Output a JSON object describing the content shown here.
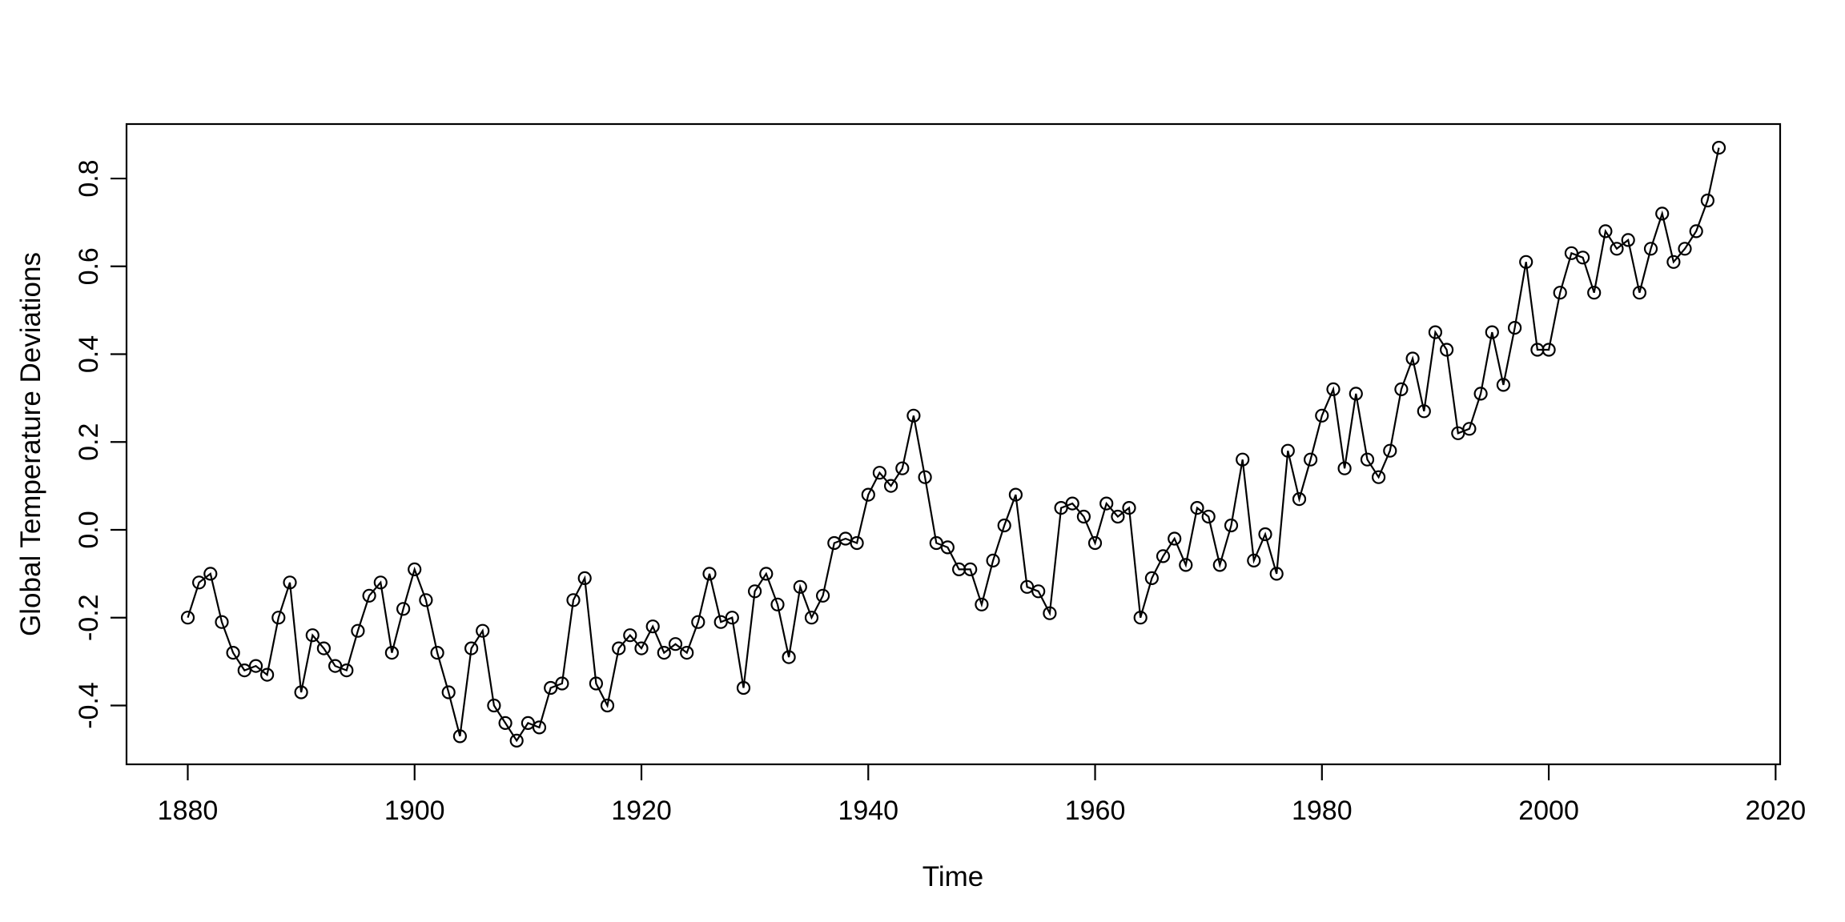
{
  "figure": {
    "background_color": "#ffffff",
    "foreground_color": "#000000"
  },
  "chart_data": {
    "type": "line",
    "title": "",
    "xlabel": "Time",
    "ylabel": "Global Temperature Deviations",
    "grid": false,
    "legend_position": "none",
    "marker": "open-circle",
    "line_color": "#000000",
    "marker_color": "#000000",
    "xlim": [
      1874.6,
      2020.4
    ],
    "ylim": [
      -0.534,
      0.924
    ],
    "x_ticks": [
      {
        "value": 1880,
        "label": "1880"
      },
      {
        "value": 1900,
        "label": "1900"
      },
      {
        "value": 1920,
        "label": "1920"
      },
      {
        "value": 1940,
        "label": "1940"
      },
      {
        "value": 1960,
        "label": "1960"
      },
      {
        "value": 1980,
        "label": "1980"
      },
      {
        "value": 2000,
        "label": "2000"
      },
      {
        "value": 2020,
        "label": "2020"
      }
    ],
    "y_ticks": [
      {
        "value": -0.4,
        "label": "-0.4"
      },
      {
        "value": -0.2,
        "label": "-0.2"
      },
      {
        "value": 0.0,
        "label": "0.0"
      },
      {
        "value": 0.2,
        "label": "0.2"
      },
      {
        "value": 0.4,
        "label": "0.4"
      },
      {
        "value": 0.6,
        "label": "0.6"
      },
      {
        "value": 0.8,
        "label": "0.8"
      }
    ],
    "series": [
      {
        "name": "Global Temperature Deviations",
        "x_start": 1880,
        "x_step": 1,
        "x_end": 2015,
        "values": [
          -0.2,
          -0.12,
          -0.1,
          -0.21,
          -0.28,
          -0.32,
          -0.31,
          -0.33,
          -0.2,
          -0.12,
          -0.37,
          -0.24,
          -0.27,
          -0.31,
          -0.32,
          -0.23,
          -0.15,
          -0.12,
          -0.28,
          -0.18,
          -0.09,
          -0.16,
          -0.28,
          -0.37,
          -0.47,
          -0.27,
          -0.23,
          -0.4,
          -0.44,
          -0.48,
          -0.44,
          -0.45,
          -0.36,
          -0.35,
          -0.16,
          -0.11,
          -0.35,
          -0.4,
          -0.27,
          -0.24,
          -0.27,
          -0.22,
          -0.28,
          -0.26,
          -0.28,
          -0.21,
          -0.1,
          -0.21,
          -0.2,
          -0.36,
          -0.14,
          -0.1,
          -0.17,
          -0.29,
          -0.13,
          -0.2,
          -0.15,
          -0.03,
          -0.02,
          -0.03,
          0.08,
          0.13,
          0.1,
          0.14,
          0.26,
          0.12,
          -0.03,
          -0.04,
          -0.09,
          -0.09,
          -0.17,
          -0.07,
          0.01,
          0.08,
          -0.13,
          -0.14,
          -0.19,
          0.05,
          0.06,
          0.03,
          -0.03,
          0.06,
          0.03,
          0.05,
          -0.2,
          -0.11,
          -0.06,
          -0.02,
          -0.08,
          0.05,
          0.03,
          -0.08,
          0.01,
          0.16,
          -0.07,
          -0.01,
          -0.1,
          0.18,
          0.07,
          0.16,
          0.26,
          0.32,
          0.14,
          0.31,
          0.16,
          0.12,
          0.18,
          0.32,
          0.39,
          0.27,
          0.45,
          0.41,
          0.22,
          0.23,
          0.31,
          0.45,
          0.33,
          0.46,
          0.61,
          0.41,
          0.41,
          0.54,
          0.63,
          0.62,
          0.54,
          0.68,
          0.64,
          0.66,
          0.54,
          0.64,
          0.72,
          0.61,
          0.64,
          0.68,
          0.75,
          0.87
        ]
      }
    ]
  }
}
